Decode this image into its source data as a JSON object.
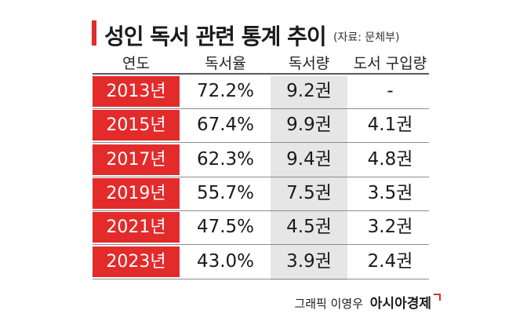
{
  "chart_data": {
    "type": "table",
    "title": "성인 독서 관련 통계 추이",
    "source": "(자료: 문체부)",
    "columns": [
      "연도",
      "독서율",
      "독서량",
      "도서 구입량"
    ],
    "rows": [
      {
        "year": "2013년",
        "reading_rate": "72.2%",
        "reading_volume": "9.2권",
        "purchase_volume": "-"
      },
      {
        "year": "2015년",
        "reading_rate": "67.4%",
        "reading_volume": "9.9권",
        "purchase_volume": "4.1권"
      },
      {
        "year": "2017년",
        "reading_rate": "62.3%",
        "reading_volume": "9.4권",
        "purchase_volume": "4.8권"
      },
      {
        "year": "2019년",
        "reading_rate": "55.7%",
        "reading_volume": "7.5권",
        "purchase_volume": "3.5권"
      },
      {
        "year": "2021년",
        "reading_rate": "47.5%",
        "reading_volume": "4.5권",
        "purchase_volume": "3.2권"
      },
      {
        "year": "2023년",
        "reading_rate": "43.0%",
        "reading_volume": "3.9권",
        "purchase_volume": "2.4권"
      }
    ]
  },
  "credit": {
    "designer": "그래픽 이영우",
    "brand": "아시아경제"
  },
  "colors": {
    "accent": "#e32b2b",
    "highlight_column": "#e6e6e6"
  }
}
